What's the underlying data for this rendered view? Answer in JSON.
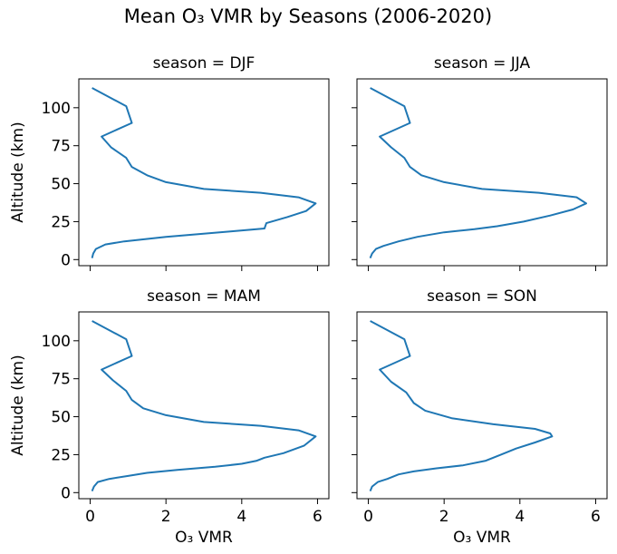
{
  "figure": {
    "title": "Mean O₃ VMR by Seasons (2006-2020)"
  },
  "chart_data": [
    {
      "type": "line",
      "title": "season = DJF",
      "xlabel": "",
      "ylabel": "Altitude (km)",
      "xlim": [
        -0.3,
        6.3
      ],
      "ylim": [
        -4,
        119
      ],
      "xticks": [
        0,
        2,
        4,
        6
      ],
      "yticks": [
        0,
        25,
        50,
        75,
        100
      ],
      "x_ticklabels_visible": false,
      "y_ticklabels_visible": true,
      "color": "#1f77b4",
      "x": [
        0.05,
        0.08,
        0.15,
        0.4,
        0.9,
        2.0,
        3.7,
        4.6,
        4.65,
        5.2,
        5.7,
        5.95,
        5.5,
        4.5,
        3.0,
        2.0,
        1.5,
        1.1,
        0.95,
        0.55,
        0.3,
        1.1,
        0.95,
        0.05
      ],
      "y": [
        1,
        4,
        7,
        10,
        12,
        15,
        18.5,
        20.5,
        24,
        28,
        32,
        37,
        41,
        44,
        46.5,
        51,
        55.5,
        61,
        67,
        74,
        81,
        90,
        101,
        113
      ]
    },
    {
      "type": "line",
      "title": "season = JJA",
      "xlabel": "",
      "ylabel": "",
      "xlim": [
        -0.3,
        6.3
      ],
      "ylim": [
        -4,
        119
      ],
      "xticks": [
        0,
        2,
        4,
        6
      ],
      "yticks": [
        0,
        25,
        50,
        75,
        100
      ],
      "x_ticklabels_visible": false,
      "y_ticklabels_visible": false,
      "color": "#1f77b4",
      "x": [
        0.05,
        0.1,
        0.2,
        0.4,
        0.8,
        1.3,
        2.0,
        2.8,
        3.4,
        4.1,
        4.8,
        5.4,
        5.75,
        5.5,
        4.5,
        3.0,
        2.0,
        1.4,
        1.1,
        0.95,
        0.6,
        0.3,
        1.1,
        0.95,
        0.05
      ],
      "y": [
        1,
        4,
        7,
        9,
        12,
        15,
        18,
        20,
        22,
        25,
        29,
        33,
        37,
        41,
        44,
        46.5,
        51,
        55.5,
        61,
        67,
        74,
        81,
        90,
        101,
        113
      ]
    },
    {
      "type": "line",
      "title": "season = MAM",
      "xlabel": "O₃ VMR",
      "ylabel": "Altitude (km)",
      "xlim": [
        -0.3,
        6.3
      ],
      "ylim": [
        -4,
        119
      ],
      "xticks": [
        0,
        2,
        4,
        6
      ],
      "yticks": [
        0,
        25,
        50,
        75,
        100
      ],
      "x_ticklabels_visible": true,
      "y_ticklabels_visible": true,
      "color": "#1f77b4",
      "x": [
        0.05,
        0.1,
        0.2,
        0.5,
        1.0,
        1.5,
        2.3,
        3.3,
        4.0,
        4.4,
        4.6,
        5.1,
        5.65,
        5.95,
        5.5,
        4.5,
        3.0,
        2.0,
        1.4,
        1.1,
        0.95,
        0.6,
        0.3,
        1.1,
        0.95,
        0.05
      ],
      "y": [
        1,
        4,
        7,
        9,
        11,
        13,
        15,
        17,
        19,
        21,
        23,
        26,
        31,
        37,
        41,
        44,
        46.5,
        51,
        55.5,
        61,
        67,
        74,
        81,
        90,
        101,
        113
      ]
    },
    {
      "type": "line",
      "title": "season = SON",
      "xlabel": "O₃ VMR",
      "ylabel": "",
      "xlim": [
        -0.3,
        6.3
      ],
      "ylim": [
        -4,
        119
      ],
      "xticks": [
        0,
        2,
        4,
        6
      ],
      "yticks": [
        0,
        25,
        50,
        75,
        100
      ],
      "x_ticklabels_visible": true,
      "y_ticklabels_visible": false,
      "color": "#1f77b4",
      "x": [
        0.05,
        0.1,
        0.25,
        0.5,
        0.8,
        1.2,
        1.8,
        2.5,
        3.1,
        3.5,
        3.9,
        4.4,
        4.85,
        4.8,
        4.4,
        3.3,
        2.2,
        1.5,
        1.2,
        1.0,
        0.6,
        0.3,
        1.1,
        0.95,
        0.05
      ],
      "y": [
        1,
        4,
        7,
        9,
        12,
        14,
        16,
        18,
        21,
        25,
        29,
        33,
        37,
        39,
        42,
        45,
        49,
        54,
        59,
        66,
        73,
        81,
        90,
        101,
        113
      ]
    }
  ]
}
